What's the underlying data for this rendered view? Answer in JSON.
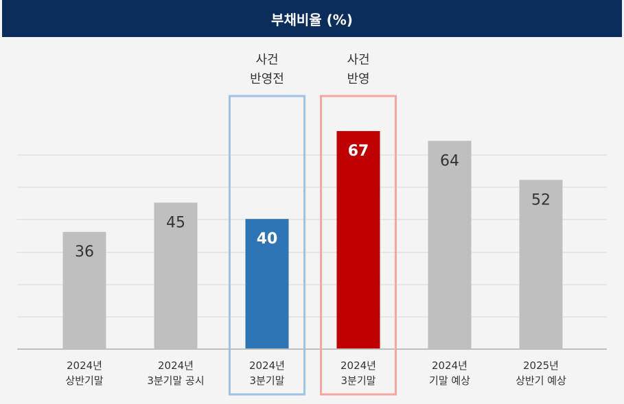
{
  "title": "부채비율 (%)",
  "colors": {
    "header_bg": "#0b2d5c",
    "bar_default": "#bfbfbf",
    "bar_before": "#2e75b6",
    "bar_after": "#c00000",
    "box_before": "#9dc3e6",
    "box_after": "#f4a7a0",
    "grid": "#d9d9d9",
    "axis": "#bfbfbf"
  },
  "chart_data": {
    "type": "bar",
    "title": "부채비율 (%)",
    "categories": [
      [
        "2024년",
        "상반기말"
      ],
      [
        "2024년",
        "3분기말 공시"
      ],
      [
        "2024년",
        "3분기말"
      ],
      [
        "2024년",
        "3분기말"
      ],
      [
        "2024년",
        "기말 예상"
      ],
      [
        "2025년",
        "상반기 예상"
      ]
    ],
    "values": [
      36,
      45,
      40,
      67,
      64,
      52
    ],
    "bar_colors": [
      "#bfbfbf",
      "#bfbfbf",
      "#2e75b6",
      "#c00000",
      "#bfbfbf",
      "#bfbfbf"
    ],
    "ylim": [
      0,
      70
    ],
    "grid": true,
    "annotations": [
      {
        "bar_index": 2,
        "lines": [
          "사건",
          "반영전"
        ],
        "box_color": "#9dc3e6"
      },
      {
        "bar_index": 3,
        "lines": [
          "사건",
          "반영"
        ],
        "box_color": "#f4a7a0"
      }
    ]
  }
}
